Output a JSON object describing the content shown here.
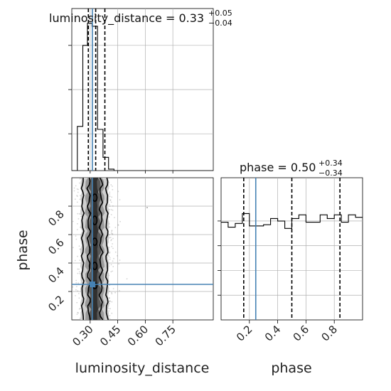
{
  "chart_data": {
    "type": "corner",
    "colors": {
      "truth": "#4682b4",
      "hist": "#000000",
      "grid": "#b0b0b0",
      "scatter": "#888888"
    },
    "panels": [
      {
        "name": "luminosity_distance-marginal",
        "type": "step-histogram",
        "title": {
          "param": "luminosity_distance",
          "value": "0.33",
          "plus": "+0.05",
          "minus": "−0.04"
        },
        "xlim": [
          0.2,
          0.97
        ],
        "bin_edges": [
          0.2,
          0.23,
          0.26,
          0.285,
          0.31,
          0.34,
          0.37,
          0.4,
          0.43,
          0.46
        ],
        "counts": [
          0.0,
          0.3,
          0.85,
          1.0,
          0.98,
          0.28,
          0.09,
          0.01,
          0.0
        ],
        "quantile_lines": [
          0.29,
          0.33,
          0.38
        ],
        "truth": 0.312
      },
      {
        "name": "phase-marginal",
        "type": "step-histogram",
        "title": {
          "param": "phase",
          "value": "0.50",
          "plus": "+0.34",
          "minus": "−0.34"
        },
        "xlim": [
          0.0,
          1.0
        ],
        "bins": 20,
        "counts": [
          0.79,
          0.75,
          0.78,
          0.86,
          0.76,
          0.76,
          0.77,
          0.82,
          0.8,
          0.74,
          0.82,
          0.85,
          0.79,
          0.79,
          0.85,
          0.82,
          0.85,
          0.79,
          0.85,
          0.83
        ],
        "quantile_lines": [
          0.16,
          0.5,
          0.84
        ],
        "truth": 0.245
      },
      {
        "name": "joint-density",
        "type": "2d-contour",
        "xlim": [
          0.2,
          0.97
        ],
        "ylim": [
          0.0,
          1.0
        ],
        "truth": {
          "x": 0.312,
          "y": 0.25
        }
      }
    ],
    "axes": {
      "luminosity_distance": {
        "label": "luminosity_distance",
        "ticks": [
          0.3,
          0.45,
          0.6,
          0.75
        ],
        "tick_labels": [
          "0.30",
          "0.45",
          "0.60",
          "0.75"
        ]
      },
      "phase": {
        "label": "phase",
        "ticks": [
          0.2,
          0.4,
          0.6,
          0.8
        ],
        "tick_labels": [
          "0.2",
          "0.4",
          "0.6",
          "0.8"
        ]
      }
    },
    "grid": true
  }
}
